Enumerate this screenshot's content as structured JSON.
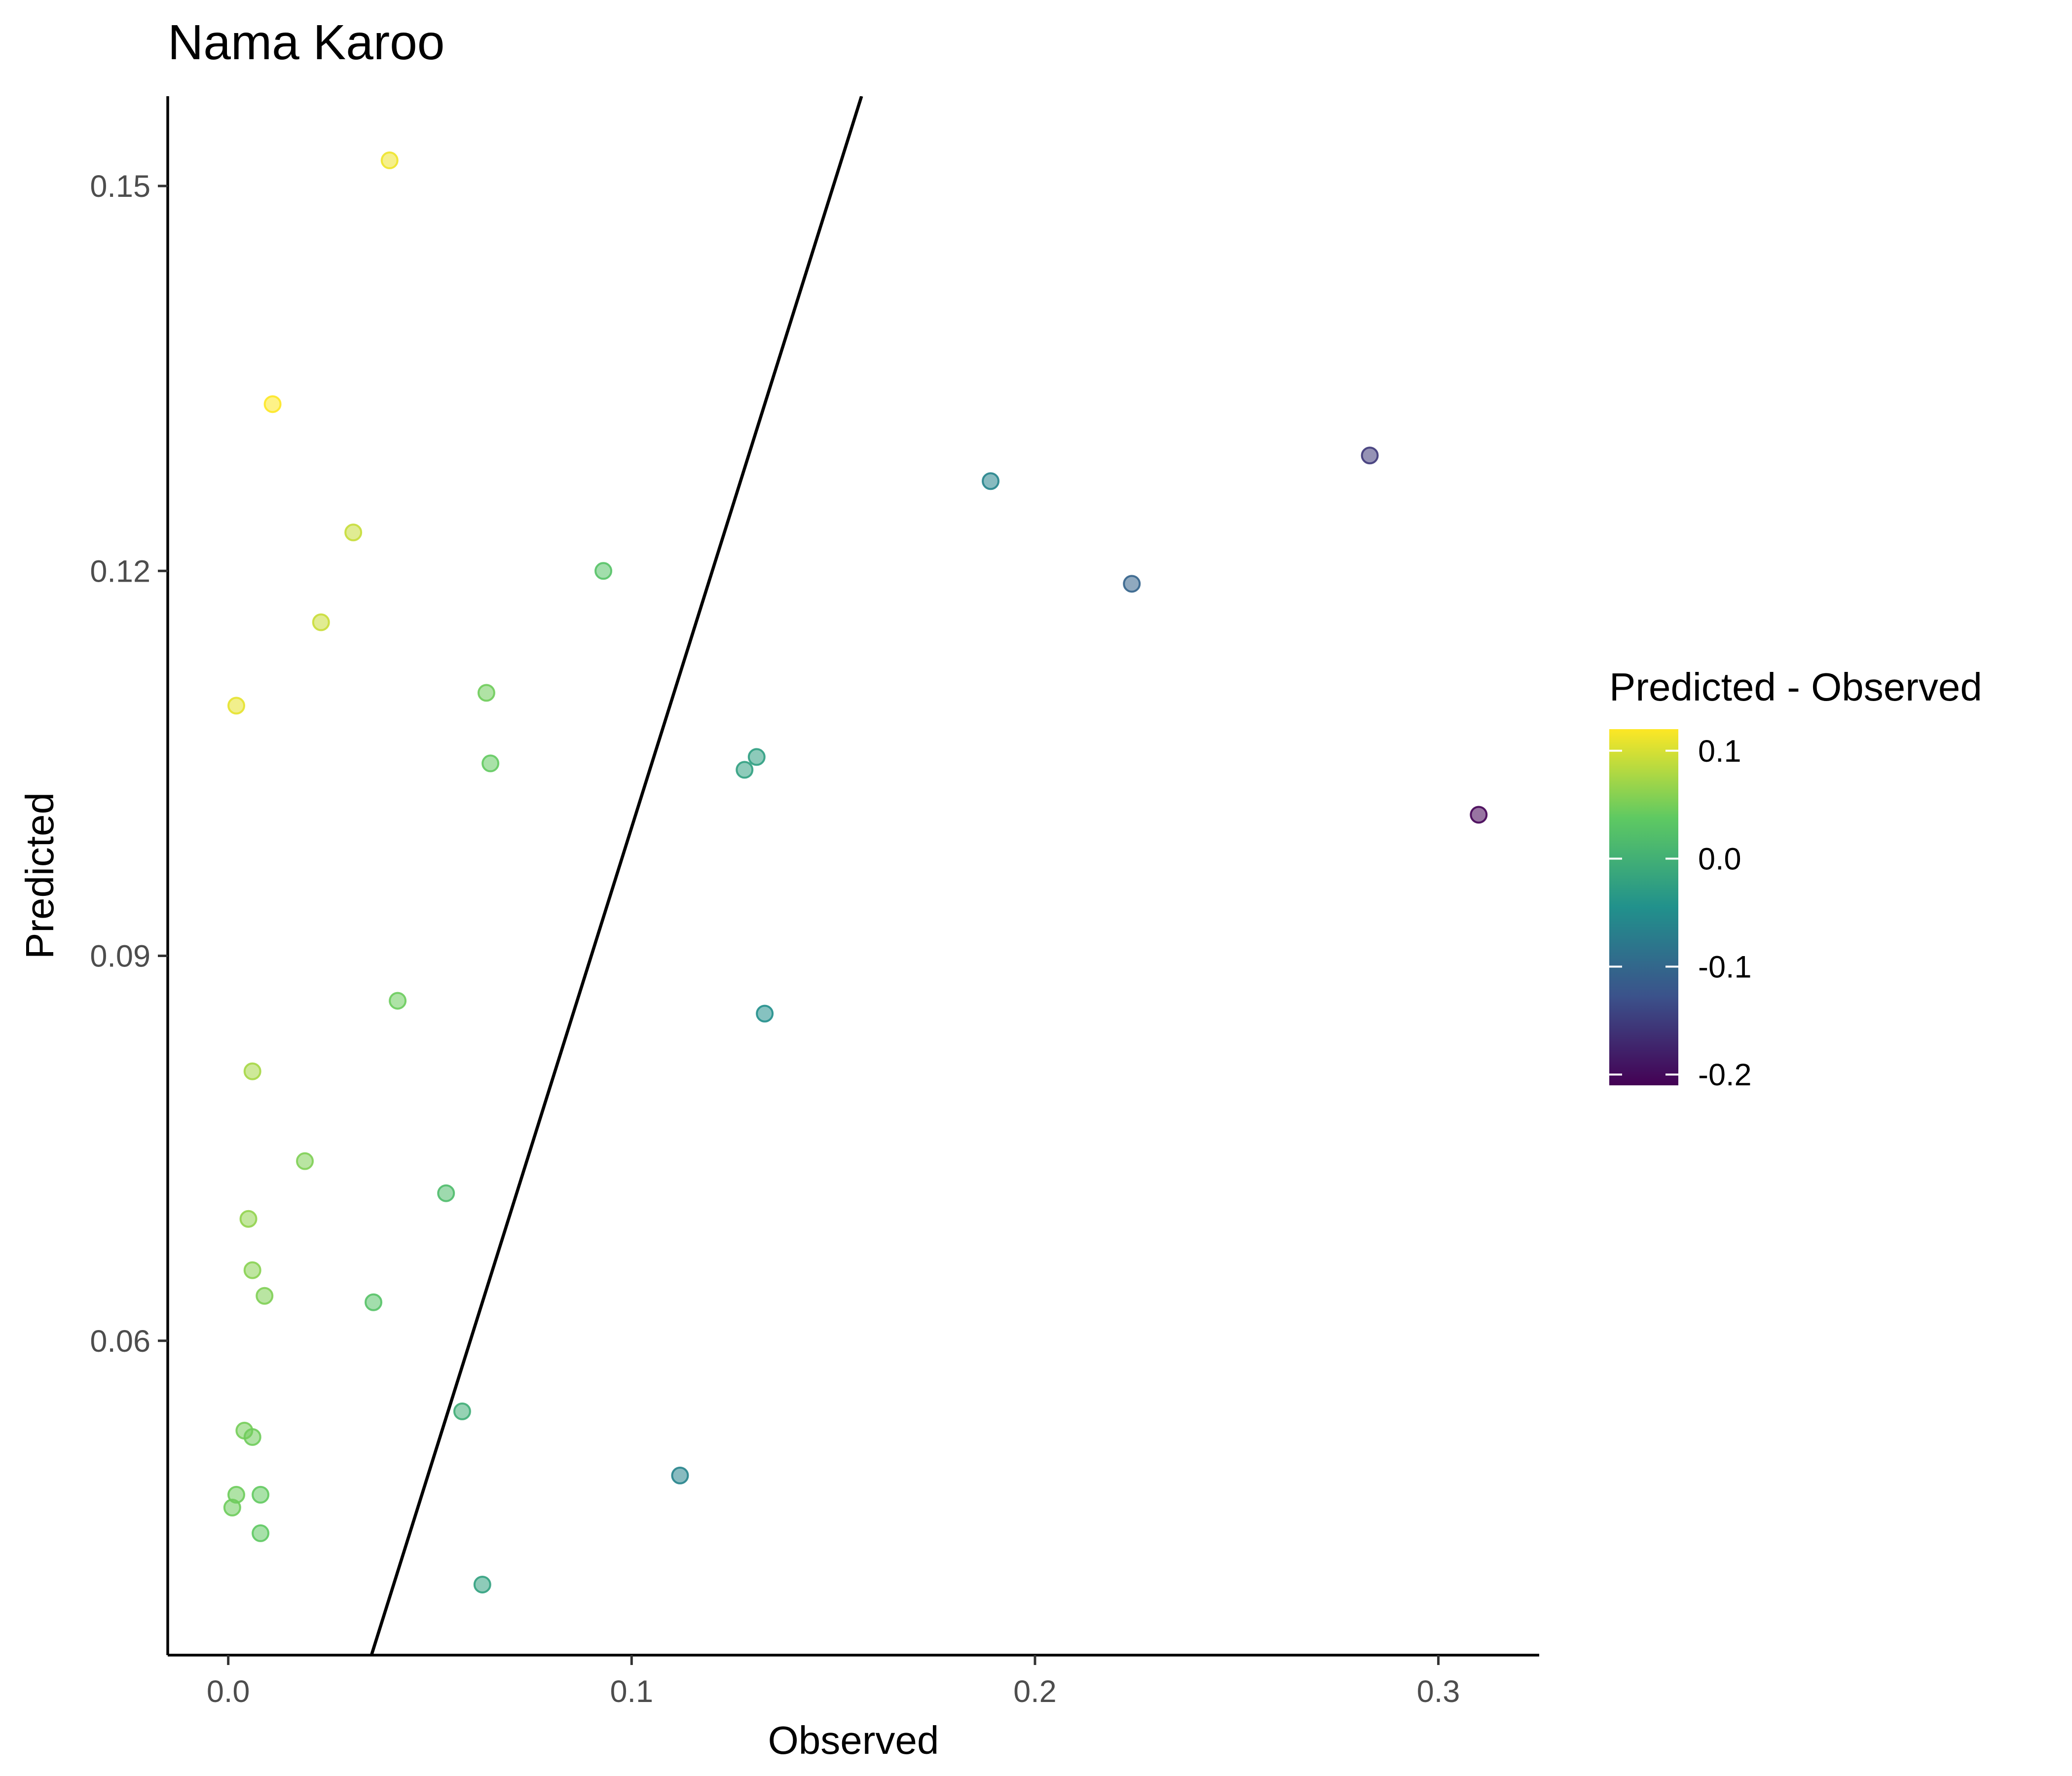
{
  "chart_data": {
    "type": "scatter",
    "title": "Nama Karoo",
    "xlabel": "Observed",
    "ylabel": "Predicted",
    "xlim": [
      -0.015,
      0.325
    ],
    "ylim": [
      0.0355,
      0.157
    ],
    "x_ticks": [
      0.0,
      0.1,
      0.2,
      0.3
    ],
    "x_tick_labels": [
      "0.0",
      "0.1",
      "0.2",
      "0.3"
    ],
    "y_ticks": [
      0.06,
      0.09,
      0.12,
      0.15
    ],
    "y_tick_labels": [
      "0.06",
      "0.09",
      "0.12",
      "0.15"
    ],
    "grid": false,
    "reference_line": {
      "slope": 1,
      "intercept": 0
    },
    "legend": {
      "title": "Predicted - Observed",
      "position": "right",
      "type": "colorbar",
      "range": [
        -0.21,
        0.12
      ],
      "ticks": [
        0.1,
        0.0,
        -0.1,
        -0.2
      ],
      "tick_labels": [
        "0.1",
        "0.0",
        "-0.1",
        "-0.2"
      ],
      "palette": [
        "#440154",
        "#3b528b",
        "#21918c",
        "#5ec962",
        "#fde725"
      ]
    },
    "points": [
      {
        "x": 0.04,
        "y": 0.152
      },
      {
        "x": 0.011,
        "y": 0.133
      },
      {
        "x": 0.031,
        "y": 0.123
      },
      {
        "x": 0.093,
        "y": 0.12
      },
      {
        "x": 0.023,
        "y": 0.116
      },
      {
        "x": 0.064,
        "y": 0.1105
      },
      {
        "x": 0.002,
        "y": 0.1095
      },
      {
        "x": 0.065,
        "y": 0.105
      },
      {
        "x": 0.189,
        "y": 0.127
      },
      {
        "x": 0.283,
        "y": 0.129
      },
      {
        "x": 0.224,
        "y": 0.119
      },
      {
        "x": 0.131,
        "y": 0.1055
      },
      {
        "x": 0.128,
        "y": 0.1045
      },
      {
        "x": 0.31,
        "y": 0.101
      },
      {
        "x": 0.042,
        "y": 0.0865
      },
      {
        "x": 0.133,
        "y": 0.0855
      },
      {
        "x": 0.006,
        "y": 0.081
      },
      {
        "x": 0.019,
        "y": 0.074
      },
      {
        "x": 0.054,
        "y": 0.0715
      },
      {
        "x": 0.005,
        "y": 0.0695
      },
      {
        "x": 0.006,
        "y": 0.0655
      },
      {
        "x": 0.009,
        "y": 0.0635
      },
      {
        "x": 0.036,
        "y": 0.063
      },
      {
        "x": 0.058,
        "y": 0.0545
      },
      {
        "x": 0.004,
        "y": 0.053
      },
      {
        "x": 0.006,
        "y": 0.0525
      },
      {
        "x": 0.112,
        "y": 0.0495
      },
      {
        "x": 0.002,
        "y": 0.048
      },
      {
        "x": 0.008,
        "y": 0.048
      },
      {
        "x": 0.001,
        "y": 0.047
      },
      {
        "x": 0.008,
        "y": 0.045
      },
      {
        "x": 0.063,
        "y": 0.041
      }
    ]
  }
}
